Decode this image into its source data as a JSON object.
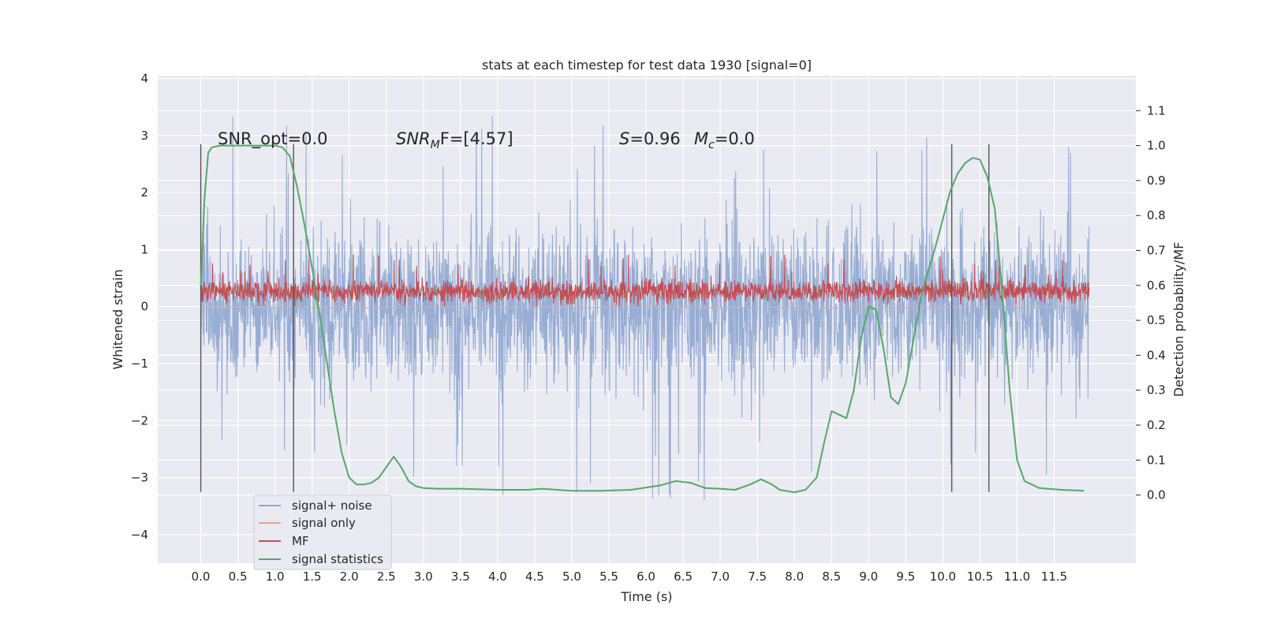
{
  "chart_data": {
    "type": "line",
    "title": "stats at each timestep for test data 1930 [signal=0]",
    "xlabel": "Time (s)",
    "ylabel_left": "Whitened strain",
    "ylabel_right": "Detection probability/MF",
    "xlim": [
      -0.58,
      12.6
    ],
    "ylim_left": [
      -4.5,
      4.05
    ],
    "ylim_right": [
      -0.195,
      1.2
    ],
    "xticks": [
      "0.0",
      "0.5",
      "1.0",
      "1.5",
      "2.0",
      "2.5",
      "3.0",
      "3.5",
      "4.0",
      "4.5",
      "5.0",
      "5.5",
      "6.0",
      "6.5",
      "7.0",
      "7.5",
      "8.0",
      "8.5",
      "9.0",
      "9.5",
      "10.0",
      "10.5",
      "11.0",
      "11.5"
    ],
    "yticks_left": [
      "4",
      "3",
      "2",
      "1",
      "0",
      "−1",
      "−2",
      "−3",
      "−4"
    ],
    "yticks_right": [
      "1.1",
      "1.0",
      "0.9",
      "0.8",
      "0.7",
      "0.6",
      "0.5",
      "0.4",
      "0.3",
      "0.2",
      "0.1",
      "0.0"
    ],
    "grid": true,
    "legend_placement": "lower-left",
    "annotations": {
      "snr_opt": "SNR_opt=0.0",
      "snr_mf_base": "SNR",
      "snr_mf_sub": "M",
      "snr_mf_rest": "F=[4.57]",
      "s_var": "S",
      "s_rest": "=0.96",
      "mc_base": "M",
      "mc_sub": "c",
      "mc_rest": "=0.0"
    },
    "vertical_lines_s": [
      0.0,
      1.25,
      10.12,
      10.62
    ],
    "series": [
      {
        "name": "signal+ noise",
        "color": "#8fa6cf",
        "axis": "left",
        "x_range": [
          0.0,
          11.97
        ],
        "band_core": [
          -1.35,
          1.65
        ],
        "spike_extremes": {
          "max": 3.65,
          "min": -3.7
        }
      },
      {
        "name": "signal only",
        "color": "#e8a88a",
        "axis": "left",
        "x": [
          0.0,
          11.97
        ],
        "y": [
          0.0,
          0.0
        ]
      },
      {
        "name": "MF",
        "color": "#c44e52",
        "axis": "left",
        "x_range": [
          0.0,
          11.97
        ],
        "band": [
          0.0,
          0.55
        ],
        "spike_max": 0.92
      },
      {
        "name": "signal statistics",
        "color": "#55a868",
        "axis": "right",
        "x": [
          0.0,
          0.05,
          0.1,
          0.15,
          0.25,
          0.4,
          0.6,
          0.8,
          1.0,
          1.1,
          1.2,
          1.3,
          1.4,
          1.5,
          1.6,
          1.7,
          1.8,
          1.9,
          2.0,
          2.1,
          2.2,
          2.3,
          2.4,
          2.5,
          2.6,
          2.7,
          2.8,
          2.9,
          3.0,
          3.2,
          3.5,
          4.0,
          4.4,
          4.6,
          5.0,
          5.4,
          5.8,
          6.2,
          6.4,
          6.6,
          6.8,
          7.0,
          7.2,
          7.4,
          7.55,
          7.7,
          7.8,
          8.0,
          8.15,
          8.3,
          8.4,
          8.5,
          8.6,
          8.7,
          8.8,
          8.9,
          9.0,
          9.1,
          9.2,
          9.3,
          9.4,
          9.5,
          9.6,
          9.7,
          9.8,
          9.9,
          10.0,
          10.1,
          10.2,
          10.3,
          10.4,
          10.5,
          10.6,
          10.7,
          10.8,
          10.9,
          11.0,
          11.1,
          11.3,
          11.6,
          11.9
        ],
        "y": [
          0.6,
          0.85,
          0.98,
          0.995,
          1.0,
          1.0,
          1.0,
          1.0,
          1.0,
          0.995,
          0.97,
          0.88,
          0.77,
          0.65,
          0.52,
          0.38,
          0.24,
          0.12,
          0.05,
          0.03,
          0.03,
          0.035,
          0.05,
          0.08,
          0.11,
          0.08,
          0.04,
          0.025,
          0.02,
          0.018,
          0.018,
          0.015,
          0.015,
          0.018,
          0.012,
          0.012,
          0.015,
          0.028,
          0.04,
          0.035,
          0.02,
          0.018,
          0.015,
          0.03,
          0.045,
          0.03,
          0.015,
          0.008,
          0.015,
          0.05,
          0.15,
          0.24,
          0.23,
          0.22,
          0.3,
          0.45,
          0.54,
          0.53,
          0.42,
          0.28,
          0.26,
          0.32,
          0.44,
          0.56,
          0.64,
          0.71,
          0.79,
          0.87,
          0.92,
          0.95,
          0.965,
          0.96,
          0.91,
          0.82,
          0.58,
          0.3,
          0.1,
          0.04,
          0.02,
          0.015,
          0.012
        ]
      }
    ]
  }
}
